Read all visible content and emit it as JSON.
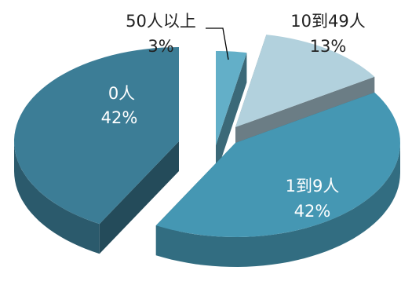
{
  "chart_data": {
    "type": "pie",
    "style": "3d-exploded",
    "title": "",
    "slices": [
      {
        "name": "0人",
        "percent_label": "42%",
        "value": 42,
        "color": "#3c7d96",
        "text_color": "#ffffff"
      },
      {
        "name": "1到9人",
        "percent_label": "42%",
        "value": 42,
        "color": "#4597b3",
        "text_color": "#ffffff"
      },
      {
        "name": "10到49人",
        "percent_label": "13%",
        "value": 13,
        "color": "#b2d1dd",
        "text_color": "#222222"
      },
      {
        "name": "50人以上",
        "percent_label": "3%",
        "value": 3,
        "color": "#63afc8",
        "text_color": "#222222"
      }
    ]
  }
}
